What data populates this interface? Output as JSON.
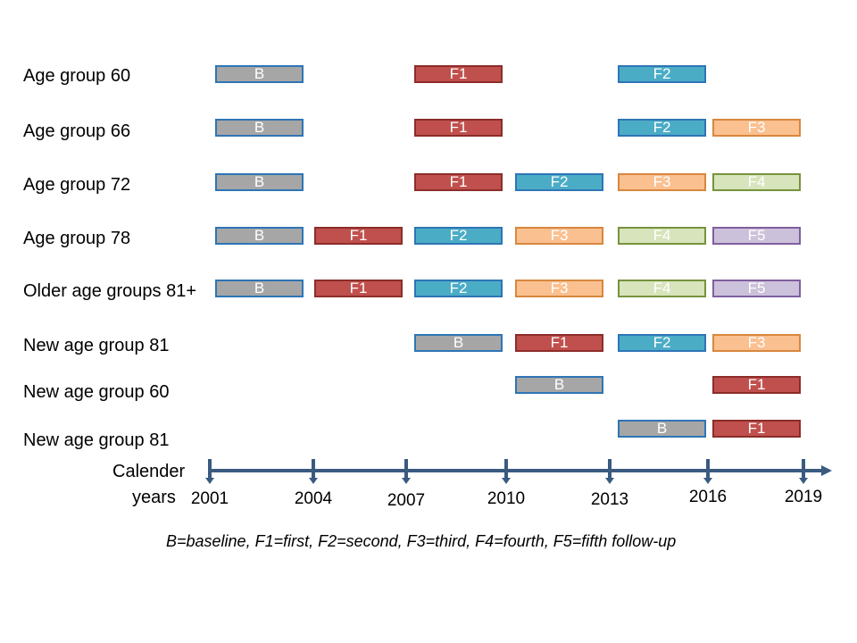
{
  "rows": [
    {
      "label": "Age group 60",
      "boxes": [
        {
          "kind": "B",
          "text": "B",
          "start": 2001
        },
        {
          "kind": "F1",
          "text": "F1",
          "start": 2007
        },
        {
          "kind": "F2",
          "text": "F2",
          "start": 2013
        }
      ]
    },
    {
      "label": "Age group 66",
      "boxes": [
        {
          "kind": "B",
          "text": "B",
          "start": 2001
        },
        {
          "kind": "F1",
          "text": "F1",
          "start": 2007
        },
        {
          "kind": "F2",
          "text": "F2",
          "start": 2013
        },
        {
          "kind": "F3",
          "text": "F3",
          "start": 2016
        }
      ]
    },
    {
      "label": "Age group 72",
      "boxes": [
        {
          "kind": "B",
          "text": "B",
          "start": 2001
        },
        {
          "kind": "F1",
          "text": "F1",
          "start": 2007
        },
        {
          "kind": "F2",
          "text": "F2",
          "start": 2010
        },
        {
          "kind": "F3",
          "text": "F3",
          "start": 2013
        },
        {
          "kind": "F4",
          "text": "F4",
          "start": 2016
        }
      ]
    },
    {
      "label": "Age group 78",
      "boxes": [
        {
          "kind": "B",
          "text": "B",
          "start": 2001
        },
        {
          "kind": "F1",
          "text": "F1",
          "start": 2004
        },
        {
          "kind": "F2",
          "text": "F2",
          "start": 2007
        },
        {
          "kind": "F3",
          "text": "F3",
          "start": 2010
        },
        {
          "kind": "F4",
          "text": "F4",
          "start": 2013
        },
        {
          "kind": "F5",
          "text": "F5",
          "start": 2016
        }
      ]
    },
    {
      "label": "Older age groups 81+",
      "boxes": [
        {
          "kind": "B",
          "text": "B",
          "start": 2001
        },
        {
          "kind": "F1",
          "text": "F1",
          "start": 2004
        },
        {
          "kind": "F2",
          "text": "F2",
          "start": 2007
        },
        {
          "kind": "F3",
          "text": "F3",
          "start": 2010
        },
        {
          "kind": "F4",
          "text": "F4",
          "start": 2013
        },
        {
          "kind": "F5",
          "text": "F5",
          "start": 2016
        }
      ]
    },
    {
      "label": "New age group 81",
      "boxes": [
        {
          "kind": "B",
          "text": "B",
          "start": 2007
        },
        {
          "kind": "F1",
          "text": "F1",
          "start": 2010
        },
        {
          "kind": "F2",
          "text": "F2",
          "start": 2013
        },
        {
          "kind": "F3",
          "text": "F3",
          "start": 2016
        }
      ]
    },
    {
      "label": "New age group 60",
      "boxes": [
        {
          "kind": "B",
          "text": "B",
          "start": 2010
        },
        {
          "kind": "F1",
          "text": "F1",
          "start": 2016
        }
      ]
    },
    {
      "label": "New age group 81",
      "boxes": [
        {
          "kind": "B",
          "text": "B",
          "start": 2013
        },
        {
          "kind": "F1",
          "text": "F1",
          "start": 2016
        }
      ]
    }
  ],
  "axis": {
    "label_line1": "Calender",
    "label_line2": "years",
    "ticks": [
      "2001",
      "2004",
      "2007",
      "2010",
      "2013",
      "2016",
      "2019"
    ],
    "color": "#3a5a80"
  },
  "legend": "B=baseline, F1=first, F2=second, F3=third, F4=fourth, F5=fifth follow-up"
}
